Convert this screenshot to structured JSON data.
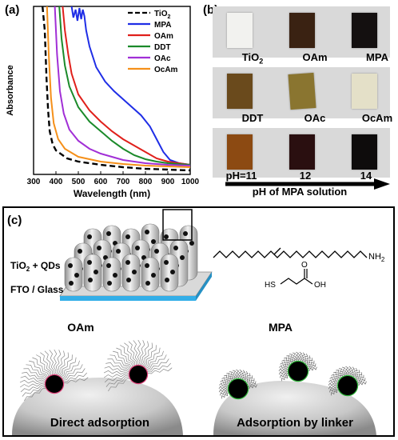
{
  "panel_a": {
    "label": "(a)",
    "chart_data": {
      "type": "line",
      "xlabel": "Wavelength (nm)",
      "ylabel": "Absorbance",
      "xlim": [
        300,
        1000
      ],
      "xticks": [
        300,
        400,
        500,
        600,
        700,
        800,
        900,
        1000
      ],
      "legend": "top-right",
      "series": [
        {
          "name": "TiO2",
          "color": "#000000",
          "dash": true,
          "points": [
            [
              340,
              1.05
            ],
            [
              350,
              0.9
            ],
            [
              358,
              0.6
            ],
            [
              365,
              0.4
            ],
            [
              372,
              0.27
            ],
            [
              385,
              0.19
            ],
            [
              400,
              0.15
            ],
            [
              450,
              0.1
            ],
            [
              500,
              0.08
            ],
            [
              600,
              0.06
            ],
            [
              700,
              0.045
            ],
            [
              800,
              0.035
            ],
            [
              900,
              0.03
            ],
            [
              1000,
              0.025
            ]
          ]
        },
        {
          "name": "MPA",
          "color": "#1f2ee6",
          "points": [
            [
              470,
              1.05
            ],
            [
              478,
              0.98
            ],
            [
              488,
              1.03
            ],
            [
              496,
              0.96
            ],
            [
              505,
              1.04
            ],
            [
              513,
              0.97
            ],
            [
              520,
              1.03
            ],
            [
              527,
              0.99
            ],
            [
              535,
              0.9
            ],
            [
              550,
              0.8
            ],
            [
              580,
              0.67
            ],
            [
              620,
              0.58
            ],
            [
              660,
              0.52
            ],
            [
              700,
              0.47
            ],
            [
              740,
              0.42
            ],
            [
              780,
              0.37
            ],
            [
              820,
              0.3
            ],
            [
              850,
              0.22
            ],
            [
              880,
              0.14
            ],
            [
              910,
              0.09
            ],
            [
              950,
              0.07
            ],
            [
              1000,
              0.06
            ]
          ]
        },
        {
          "name": "OAm",
          "color": "#e0201b",
          "points": [
            [
              430,
              1.05
            ],
            [
              440,
              0.9
            ],
            [
              455,
              0.75
            ],
            [
              470,
              0.63
            ],
            [
              500,
              0.5
            ],
            [
              550,
              0.4
            ],
            [
              600,
              0.33
            ],
            [
              650,
              0.27
            ],
            [
              700,
              0.22
            ],
            [
              750,
              0.18
            ],
            [
              800,
              0.14
            ],
            [
              850,
              0.1
            ],
            [
              900,
              0.08
            ],
            [
              950,
              0.07
            ],
            [
              1000,
              0.06
            ]
          ]
        },
        {
          "name": "DDT",
          "color": "#1b8a2a",
          "points": [
            [
              415,
              1.05
            ],
            [
              425,
              0.85
            ],
            [
              440,
              0.68
            ],
            [
              460,
              0.55
            ],
            [
              500,
              0.42
            ],
            [
              550,
              0.33
            ],
            [
              600,
              0.27
            ],
            [
              650,
              0.21
            ],
            [
              700,
              0.16
            ],
            [
              750,
              0.12
            ],
            [
              800,
              0.095
            ],
            [
              850,
              0.08
            ],
            [
              900,
              0.07
            ],
            [
              1000,
              0.06
            ]
          ]
        },
        {
          "name": "OAc",
          "color": "#a12fd6",
          "points": [
            [
              395,
              1.05
            ],
            [
              405,
              0.75
            ],
            [
              418,
              0.52
            ],
            [
              435,
              0.38
            ],
            [
              460,
              0.28
            ],
            [
              500,
              0.21
            ],
            [
              550,
              0.16
            ],
            [
              600,
              0.13
            ],
            [
              650,
              0.11
            ],
            [
              700,
              0.09
            ],
            [
              800,
              0.07
            ],
            [
              900,
              0.06
            ],
            [
              1000,
              0.055
            ]
          ]
        },
        {
          "name": "OcAm",
          "color": "#f5901a",
          "points": [
            [
              360,
              1.05
            ],
            [
              368,
              0.75
            ],
            [
              378,
              0.48
            ],
            [
              390,
              0.32
            ],
            [
              410,
              0.22
            ],
            [
              440,
              0.16
            ],
            [
              500,
              0.11
            ],
            [
              600,
              0.08
            ],
            [
              700,
              0.065
            ],
            [
              800,
              0.055
            ],
            [
              900,
              0.05
            ],
            [
              1000,
              0.045
            ]
          ]
        }
      ],
      "legend_entries": [
        "TiO",
        "MPA",
        "OAm",
        "DDT",
        "OAc",
        "OcAm"
      ],
      "legend_subscript": "2"
    }
  },
  "panel_b": {
    "label": "(b)",
    "rows": [
      {
        "items": [
          {
            "label": "TiO",
            "sub": "2",
            "color": "#f2f2ef"
          },
          {
            "label": "OAm",
            "color": "#3a2212"
          },
          {
            "label": "MPA",
            "color": "#141010"
          }
        ]
      },
      {
        "items": [
          {
            "label": "DDT",
            "color": "#6a4a1c"
          },
          {
            "label": "OAc",
            "color": "#8a7530"
          },
          {
            "label": "OcAm",
            "color": "#e4e0c8"
          }
        ]
      },
      {
        "items": [
          {
            "label": "pH=11",
            "color": "#8c4a12"
          },
          {
            "label": "12",
            "color": "#2a0f10"
          },
          {
            "label": "14",
            "color": "#0e0c0c"
          }
        ]
      }
    ],
    "arrow_label": "pH of MPA solution"
  },
  "panel_c": {
    "label": "(c)",
    "inset_label_1": "TiO",
    "inset_label_1_sub": "2",
    "inset_label_1_tail": " + QDs",
    "inset_label_2": "FTO / Glass",
    "chem_nh2": "NH",
    "chem_nh2_sub": "2",
    "chem_hs": "HS",
    "chem_oh": "OH",
    "chem_o": "O",
    "left_title": "OAm",
    "right_title": "MPA",
    "left_caption": "Direct adsorption",
    "right_caption": "Adsorption by linker",
    "colors": {
      "oam_ring": "#e0407a",
      "mpa_ring": "#2fb53a",
      "blue_layer": "#33aee8"
    }
  }
}
